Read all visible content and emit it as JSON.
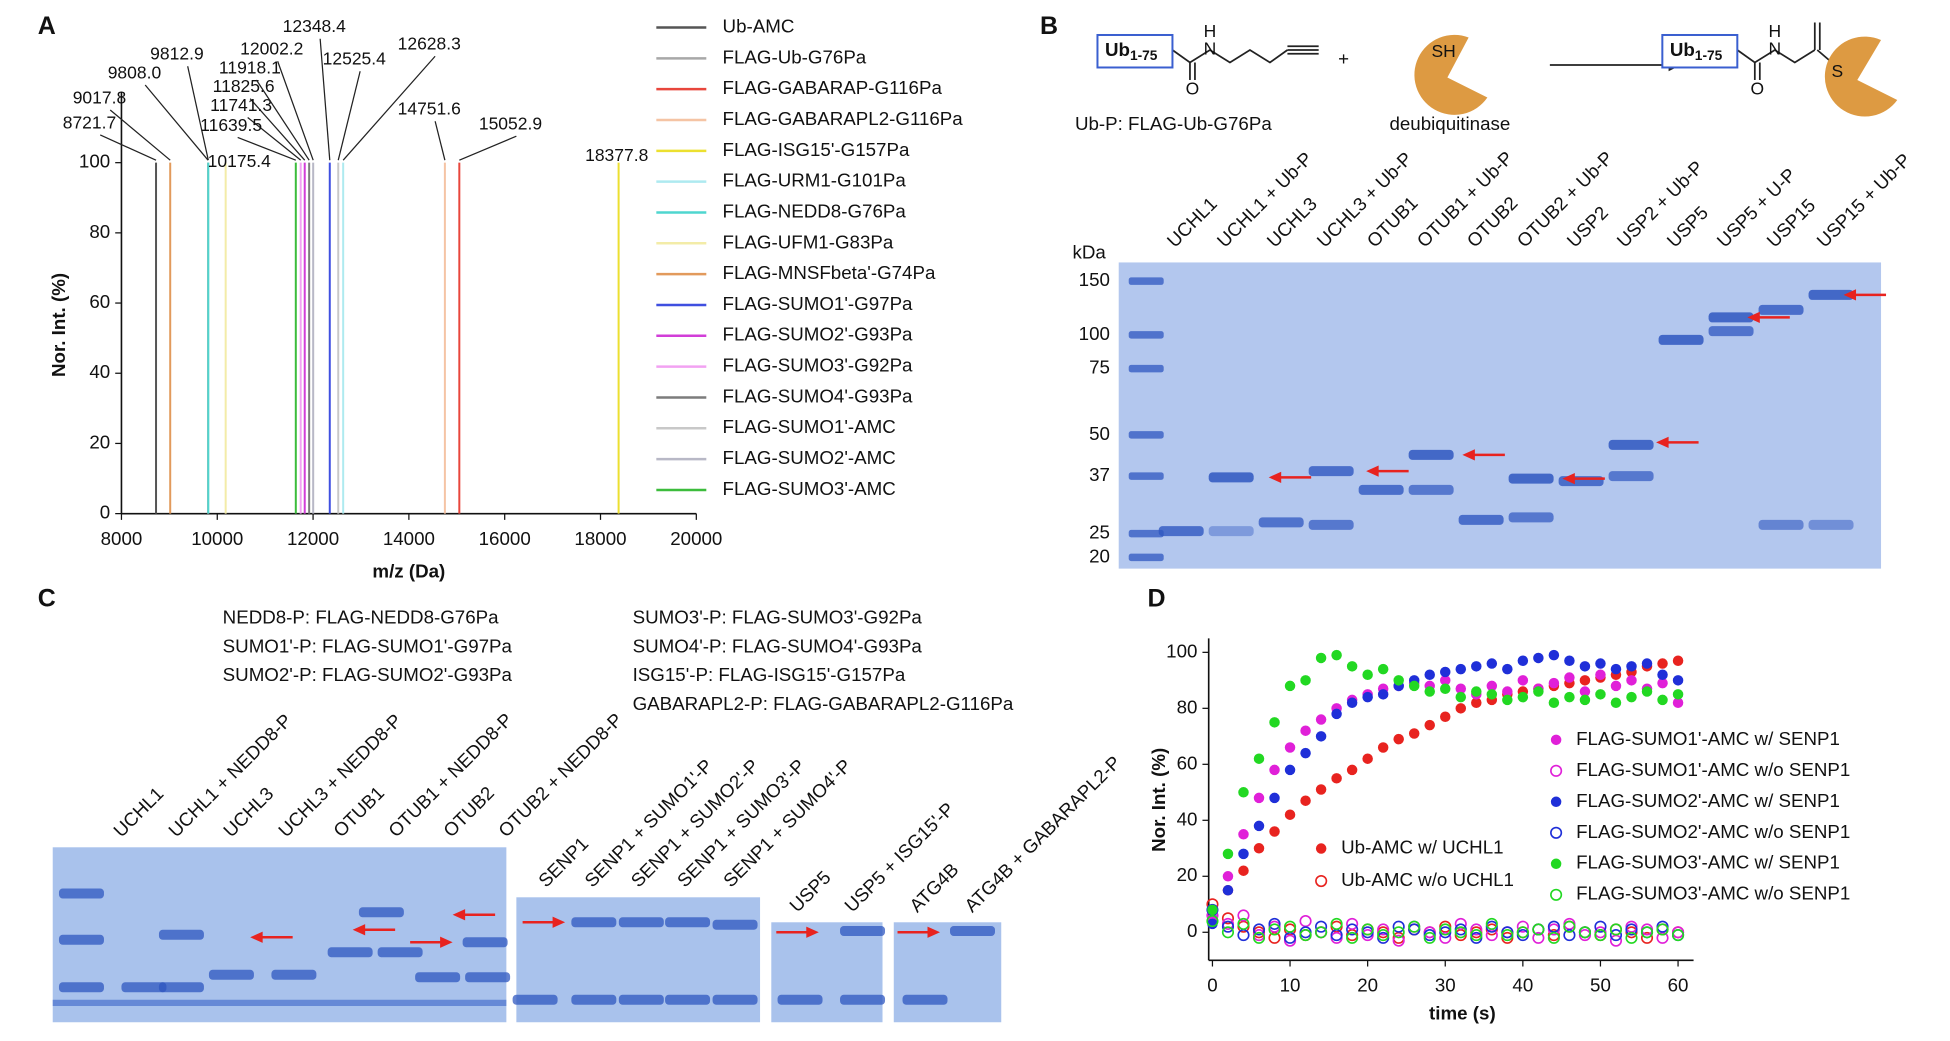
{
  "panel_labels": [
    "A",
    "B",
    "C",
    "D"
  ],
  "chart_data": [
    {
      "type": "spectrum",
      "x_label": "m/z (Da)",
      "y_label": "Nor. Int. (%)",
      "xlim": [
        8000,
        20000
      ],
      "xticks": [
        8000,
        10000,
        12000,
        14000,
        16000,
        18000,
        20000
      ],
      "ylim": [
        0,
        120
      ],
      "yticks": [
        0,
        20,
        40,
        60,
        80,
        100
      ],
      "series": [
        {
          "name": "Ub-AMC",
          "color": "#555555",
          "x": [
            8721.7
          ],
          "x_labels": [
            "8721.7"
          ],
          "values": [
            100
          ]
        },
        {
          "name": "FLAG-Ub-G76Pa",
          "color": "#a8a8a8",
          "x": [
            9808.0
          ],
          "x_labels": [
            "9808.0"
          ],
          "values": [
            100
          ]
        },
        {
          "name": "FLAG-GABARAP-G116Pa",
          "color": "#e8463c",
          "x": [
            15052.9
          ],
          "x_labels": [
            "15052.9"
          ],
          "values": [
            100
          ]
        },
        {
          "name": "FLAG-GABARAPL2-G116Pa",
          "color": "#f5c4a4",
          "x": [
            14751.6
          ],
          "x_labels": [
            "14751.6"
          ],
          "values": [
            100
          ]
        },
        {
          "name": "FLAG-ISG15'-G157Pa",
          "color": "#ece030",
          "x": [
            18377.8
          ],
          "x_labels": [
            "18377.8"
          ],
          "values": [
            100
          ]
        },
        {
          "name": "FLAG-URM1-G101Pa",
          "color": "#aeeaf0",
          "x": [
            12628.3
          ],
          "x_labels": [
            "12628.3"
          ],
          "values": [
            100
          ]
        },
        {
          "name": "FLAG-NEDD8-G76Pa",
          "color": "#4fd6cf",
          "x": [
            9812.9
          ],
          "x_labels": [
            "9812.9"
          ],
          "values": [
            100
          ]
        },
        {
          "name": "FLAG-UFM1-G83Pa",
          "color": "#f3eca8",
          "x": [
            10175.4
          ],
          "x_labels": [
            "10175.4"
          ],
          "values": [
            100
          ]
        },
        {
          "name": "FLAG-MNSFbeta'-G74Pa",
          "color": "#e29a5c",
          "x": [
            9017.8
          ],
          "x_labels": [
            "9017.8"
          ],
          "values": [
            100
          ]
        },
        {
          "name": "FLAG-SUMO1'-G97Pa",
          "color": "#3f4fe0",
          "x": [
            12348.4
          ],
          "x_labels": [
            "12348.4"
          ],
          "values": [
            100
          ]
        },
        {
          "name": "FLAG-SUMO2'-G93Pa",
          "color": "#d23ed8",
          "x": [
            11825.6
          ],
          "x_labels": [
            "11825.6"
          ],
          "values": [
            100
          ]
        },
        {
          "name": "FLAG-SUMO3'-G92Pa",
          "color": "#f2a2f2",
          "x": [
            11741.3
          ],
          "x_labels": [
            "11741.3"
          ],
          "values": [
            100
          ]
        },
        {
          "name": "FLAG-SUMO4'-G93Pa",
          "color": "#7c7c7c",
          "x": [
            11918.1
          ],
          "x_labels": [
            "11918.1"
          ],
          "values": [
            100
          ]
        },
        {
          "name": "FLAG-SUMO1'-AMC",
          "color": "#c8c8c8",
          "x": [
            12525.4
          ],
          "x_labels": [
            "12525.4"
          ],
          "values": [
            100
          ]
        },
        {
          "name": "FLAG-SUMO2'-AMC",
          "color": "#b8b8c6",
          "x": [
            12002.2
          ],
          "x_labels": [
            "12002.2"
          ],
          "values": [
            100
          ]
        },
        {
          "name": "FLAG-SUMO3'-AMC",
          "color": "#3cbc3c",
          "x": [
            11639.5
          ],
          "x_labels": [
            "11639.5"
          ],
          "values": [
            100
          ]
        }
      ]
    },
    {
      "type": "scatter",
      "x_label": "time (s)",
      "y_label": "Nor. Int. (%)",
      "xlim": [
        0,
        62
      ],
      "xticks": [
        0,
        10,
        20,
        30,
        40,
        50,
        60
      ],
      "ylim": [
        -10,
        105
      ],
      "yticks": [
        0,
        20,
        40,
        60,
        80,
        100
      ],
      "x": [
        0,
        2,
        4,
        6,
        8,
        10,
        12,
        14,
        16,
        18,
        20,
        22,
        24,
        26,
        28,
        30,
        32,
        34,
        36,
        38,
        40,
        42,
        44,
        46,
        48,
        50,
        52,
        54,
        56,
        58,
        60
      ],
      "series": [
        {
          "name": "Ub-AMC w/ UCHL1",
          "color": "#e8231f",
          "marker": "filled",
          "values": [
            5,
            15,
            22,
            30,
            36,
            42,
            47,
            51,
            55,
            58,
            62,
            66,
            69,
            71,
            74,
            77,
            80,
            82,
            83,
            85,
            86,
            87,
            88,
            89,
            90,
            91,
            92,
            93,
            95,
            96,
            97
          ]
        },
        {
          "name": "Ub-AMC w/o UCHL1",
          "color": "#e8231f",
          "marker": "open",
          "values": [
            10,
            5,
            2,
            0,
            -2,
            1,
            -1,
            0,
            2,
            -1,
            1,
            0,
            -2,
            1,
            0,
            2,
            -1,
            0,
            1,
            -2,
            0,
            1,
            -1,
            2,
            0,
            -1,
            1,
            0,
            -2,
            1,
            0
          ]
        },
        {
          "name": "FLAG-SUMO1'-AMC w/ SENP1",
          "color": "#e020d8",
          "marker": "filled",
          "values": [
            5,
            20,
            35,
            48,
            58,
            66,
            72,
            76,
            80,
            83,
            85,
            87,
            88,
            89,
            88,
            90,
            87,
            85,
            88,
            86,
            90,
            87,
            89,
            91,
            86,
            92,
            88,
            90,
            87,
            89,
            82
          ]
        },
        {
          "name": "FLAG-SUMO1'-AMC w/o SENP1",
          "color": "#e020d8",
          "marker": "open",
          "values": [
            6,
            3,
            6,
            -1,
            2,
            -3,
            4,
            0,
            -2,
            3,
            -1,
            1,
            -3,
            2,
            0,
            -2,
            3,
            1,
            -1,
            0,
            2,
            -2,
            1,
            3,
            -1,
            0,
            -3,
            2,
            1,
            -2,
            0
          ]
        },
        {
          "name": "FLAG-SUMO2'-AMC w/ SENP1",
          "color": "#1f2fd8",
          "marker": "filled",
          "values": [
            3,
            15,
            28,
            38,
            48,
            58,
            64,
            70,
            78,
            82,
            84,
            85,
            88,
            90,
            92,
            93,
            94,
            95,
            96,
            94,
            97,
            98,
            99,
            97,
            95,
            96,
            94,
            95,
            96,
            92,
            90
          ]
        },
        {
          "name": "FLAG-SUMO2'-AMC w/o SENP1",
          "color": "#1f2fd8",
          "marker": "open",
          "values": [
            8,
            2,
            -1,
            1,
            3,
            -2,
            0,
            2,
            -1,
            1,
            0,
            -2,
            2,
            1,
            -1,
            0,
            1,
            -2,
            2,
            0,
            -1,
            1,
            2,
            -1,
            0,
            2,
            -1,
            1,
            0,
            2,
            -1
          ]
        },
        {
          "name": "FLAG-SUMO3'-AMC w/ SENP1",
          "color": "#22d822",
          "marker": "filled",
          "values": [
            8,
            28,
            50,
            62,
            75,
            88,
            90,
            98,
            99,
            95,
            92,
            94,
            90,
            88,
            86,
            87,
            84,
            86,
            85,
            83,
            84,
            86,
            82,
            84,
            83,
            85,
            82,
            84,
            86,
            83,
            85
          ]
        },
        {
          "name": "FLAG-SUMO3'-AMC w/o SENP1",
          "color": "#22d822",
          "marker": "open",
          "values": [
            4,
            0,
            3,
            -2,
            1,
            2,
            -1,
            0,
            3,
            -2,
            1,
            -1,
            0,
            2,
            -2,
            1,
            0,
            -1,
            3,
            -1,
            0,
            1,
            -2,
            2,
            0,
            -1,
            1,
            -2,
            0,
            1,
            -1
          ]
        }
      ]
    }
  ],
  "scheme": {
    "boxes": [
      {
        "main": "Ub",
        "sub": "1-75"
      },
      {
        "main": "Ub",
        "sub": "1-75"
      }
    ],
    "atoms": [
      "H",
      "N",
      "O",
      "SH",
      "H",
      "N",
      "O",
      "S"
    ],
    "plus": "+",
    "probe_label": "Ub-P:  FLAG-Ub-G76Pa",
    "enzyme_label": "deubiquitinase"
  },
  "gel_b": {
    "unit": "kDa",
    "markers": [
      150,
      100,
      75,
      50,
      37,
      25,
      20
    ],
    "lanes": [
      "UCHL1",
      "UCHL1 + Ub-P",
      "UCHL3",
      "UCHL3 + Ub-P",
      "OTUB1",
      "OTUB1 + Ub-P",
      "OTUB2",
      "OTUB2 + Ub-P",
      "USP2",
      "USP2 + Ub-P",
      "USP5",
      "USP5 + U-P",
      "USP15",
      "USP15 + Ub-P"
    ]
  },
  "panel_c": {
    "definitions": [
      "NEDD8-P:  FLAG-NEDD8-G76Pa",
      "SUMO1'-P: FLAG-SUMO1'-G97Pa",
      "SUMO2'-P: FLAG-SUMO2'-G93Pa",
      "SUMO3'-P: FLAG-SUMO3'-G92Pa",
      "SUMO4'-P: FLAG-SUMO4'-G93Pa",
      "ISG15'-P: FLAG-ISG15'-G157Pa",
      "GABARAPL2-P: FLAG-GABARAPL2-G116Pa"
    ],
    "gels": [
      {
        "lanes": [
          "UCHL1",
          "UCHL1 + NEDD8-P",
          "UCHL3",
          "UCHL3 + NEDD8-P",
          "OTUB1",
          "OTUB1 + NEDD8-P",
          "OTUB2",
          "OTUB2 + NEDD8-P"
        ]
      },
      {
        "lanes": [
          "SENP1",
          "SENP1 + SUMO1'-P",
          "SENP1 + SUMO2'-P",
          "SENP1 + SUMO3'-P",
          "SENP1 + SUMO4'-P"
        ]
      },
      {
        "lanes": [
          "USP5",
          "USP5 + ISG15'-P"
        ]
      },
      {
        "lanes": [
          "ATG4B",
          "ATG4B + GABARAPL2-P"
        ]
      }
    ]
  }
}
